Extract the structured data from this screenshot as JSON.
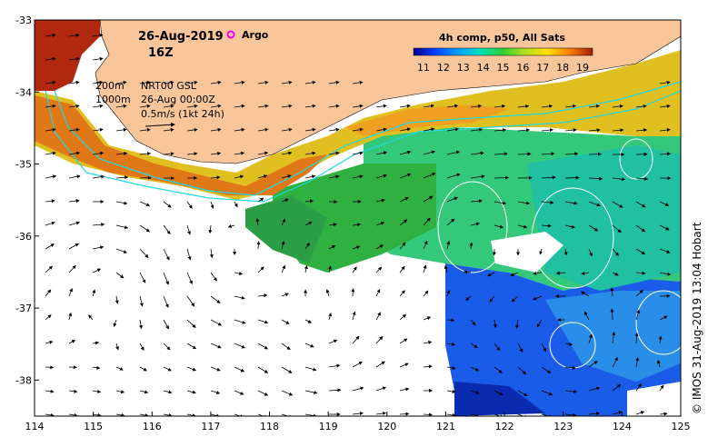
{
  "map": {
    "date": "26-Aug-2019",
    "hour": "16Z",
    "argo_label": "Argo",
    "colorbar": {
      "title": "4h comp, p50, All Sats",
      "ticks": [
        "11",
        "12",
        "13",
        "14",
        "15",
        "16",
        "17",
        "18",
        "19"
      ],
      "min": 10.5,
      "max": 19.5
    },
    "legend": {
      "isobath_200": "200m",
      "isobath_1000": "1000m",
      "altimetry": "NRT00 GSL",
      "altimetry_date": "26-Aug 00:00Z",
      "vector_scale": "0.5m/s (1kt 24h)"
    },
    "x_ticks": [
      "114",
      "115",
      "116",
      "117",
      "118",
      "119",
      "120",
      "121",
      "122",
      "123",
      "124",
      "125"
    ],
    "y_ticks": [
      "-33",
      "-34",
      "-35",
      "-36",
      "-37",
      "-38"
    ],
    "lon_range": [
      114,
      125
    ],
    "lat_range": [
      -38.5,
      -33
    ],
    "credit": "© IMOS 31-Aug-2019 13:04 Hobart",
    "colors": {
      "land": "#f9c59a",
      "argo": "#ff00ff",
      "isobath": "#20d8e0",
      "cold": "#0018a8",
      "warm": "#a01e00"
    }
  }
}
